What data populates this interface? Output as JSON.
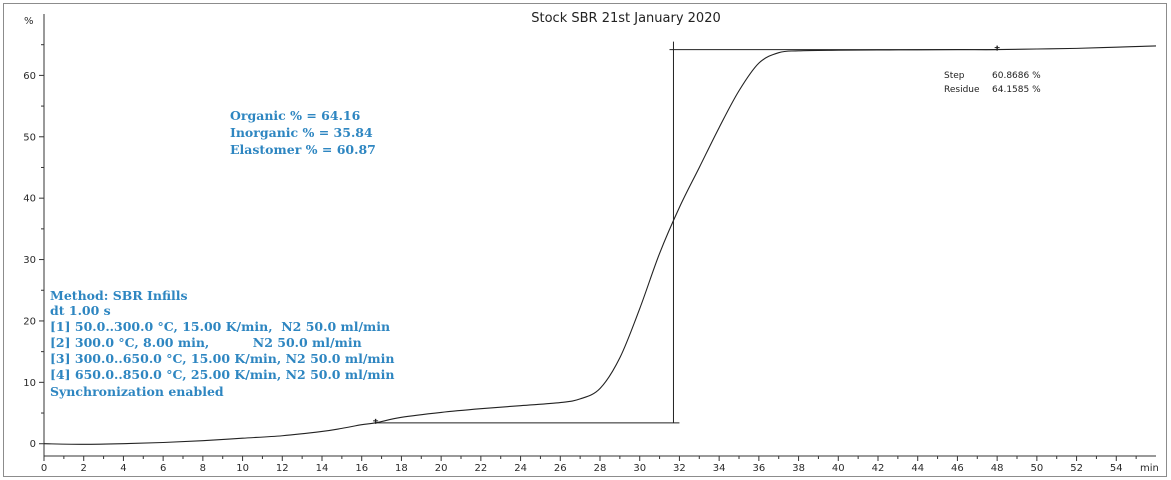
{
  "chart_data": {
    "type": "line",
    "title": "Stock SBR 21st January 2020",
    "xlabel": "min",
    "ylabel": "%",
    "xlim": [
      0,
      56
    ],
    "ylim": [
      -2,
      70
    ],
    "x_ticks": [
      0,
      2,
      4,
      6,
      8,
      10,
      12,
      14,
      16,
      18,
      20,
      22,
      24,
      26,
      28,
      30,
      32,
      34,
      36,
      38,
      40,
      42,
      44,
      46,
      48,
      50,
      52,
      54
    ],
    "y_ticks": [
      0,
      10,
      20,
      30,
      40,
      50,
      60
    ],
    "line_color": "#222222",
    "series": [
      {
        "x": [
          0,
          2,
          4,
          6,
          8,
          10,
          12,
          14,
          15,
          16,
          16.7,
          18,
          20,
          22,
          24,
          26,
          27,
          28,
          29,
          30,
          31,
          32,
          33,
          34,
          35,
          36,
          37,
          38,
          40,
          42,
          44,
          46,
          48,
          50,
          52,
          54,
          56
        ],
        "y": [
          0,
          -0.1,
          0,
          0.2,
          0.5,
          0.9,
          1.3,
          2.0,
          2.5,
          3.1,
          3.4,
          4.3,
          5.1,
          5.7,
          6.2,
          6.7,
          7.3,
          9.0,
          14.0,
          22.0,
          31.0,
          38.5,
          45.0,
          51.5,
          57.5,
          62.0,
          63.7,
          64.0,
          64.1,
          64.15,
          64.16,
          64.2,
          64.2,
          64.3,
          64.4,
          64.6,
          64.8
        ]
      }
    ],
    "step_lines": {
      "lower_y": 3.4,
      "upper_y": 64.2,
      "lower_x": [
        16.7,
        32
      ],
      "upper_x": [
        31.5,
        48
      ],
      "vertical_x": 31.7,
      "vertical_y": [
        3.4,
        65.5
      ]
    },
    "markers": [
      {
        "x": 16.7,
        "y": 3.4
      },
      {
        "x": 48,
        "y": 64.2
      }
    ]
  },
  "annotations": {
    "results": [
      "Organic % = 64.16",
      "Inorganic % = 35.84",
      "Elastomer % = 60.87"
    ],
    "method": [
      "Method: SBR Infills",
      "dt 1.00 s",
      "[1] 50.0..300.0 °C, 15.00 K/min,  N2 50.0 ml/min",
      "[2] 300.0 °C, 8.00 min,          N2 50.0 ml/min",
      "[3] 300.0..650.0 °C, 15.00 K/min, N2 50.0 ml/min",
      "[4] 650.0..850.0 °C, 25.00 K/min, N2 50.0 ml/min",
      "Synchronization enabled"
    ],
    "step_label": "Step",
    "step_value": "60.8686 %",
    "residue_label": "Residue",
    "residue_value": "64.1585 %"
  }
}
